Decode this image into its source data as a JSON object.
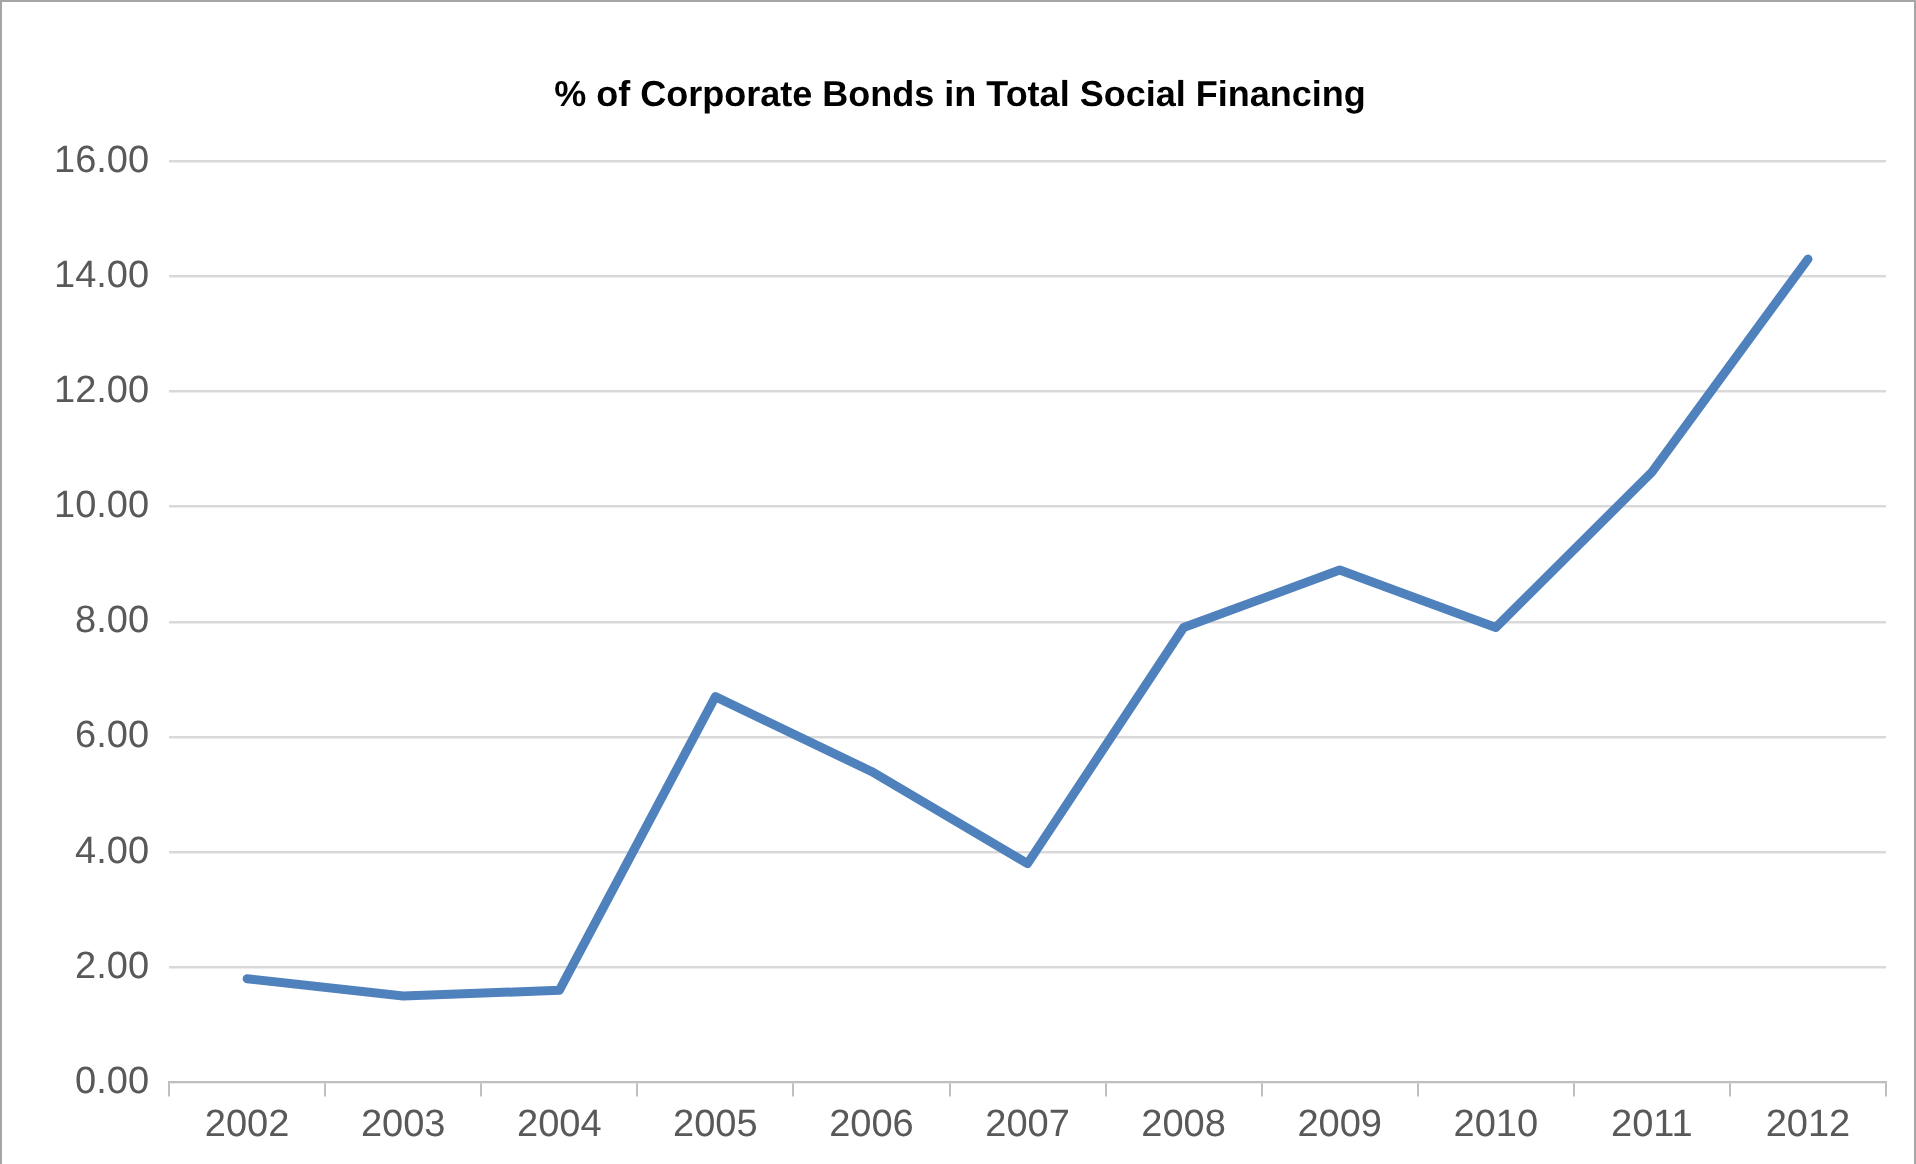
{
  "chart_data": {
    "type": "line",
    "title": "% of Corporate Bonds in Total Social Financing",
    "categories": [
      "2002",
      "2003",
      "2004",
      "2005",
      "2006",
      "2007",
      "2008",
      "2009",
      "2010",
      "2011",
      "2012"
    ],
    "series": [
      {
        "color": "#4f81bd",
        "values": [
          1.8,
          1.5,
          1.6,
          6.7,
          5.4,
          3.8,
          7.9,
          8.9,
          7.9,
          10.6,
          14.3
        ]
      }
    ],
    "ylim": [
      0,
      16
    ],
    "yticks": [
      {
        "value": 0,
        "label": "0.00"
      },
      {
        "value": 2,
        "label": "2.00"
      },
      {
        "value": 4,
        "label": "4.00"
      },
      {
        "value": 6,
        "label": "6.00"
      },
      {
        "value": 8,
        "label": "8.00"
      },
      {
        "value": 10,
        "label": "10.00"
      },
      {
        "value": 12,
        "label": "12.00"
      },
      {
        "value": 14,
        "label": "14.00"
      },
      {
        "value": 16,
        "label": "16.00"
      }
    ],
    "grid": "y",
    "legend": false,
    "marker": "none",
    "line_style": "solid"
  }
}
